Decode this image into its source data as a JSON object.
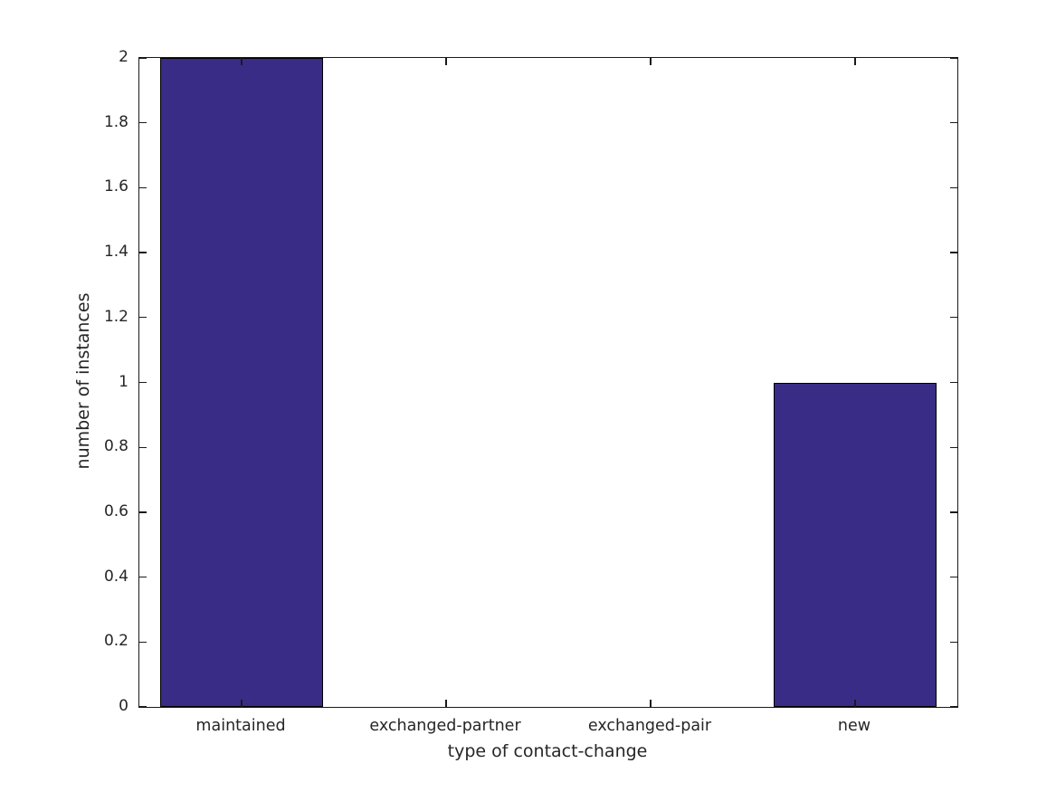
{
  "figure": {
    "background": "#ffffff",
    "text_color": "#262626",
    "axis_color": "#1a1a1a"
  },
  "chart_data": {
    "type": "bar",
    "title": "",
    "categories": [
      "maintained",
      "exchanged-partner",
      "exchanged-pair",
      "new"
    ],
    "values": [
      2,
      0,
      0,
      1
    ],
    "xlabel": "type of contact-change",
    "ylabel": "number of instances",
    "ylim": [
      0,
      2
    ],
    "ytick_labels": [
      "0",
      "0.2",
      "0.4",
      "0.6",
      "0.8",
      "1",
      "1.2",
      "1.4",
      "1.6",
      "1.8",
      "2"
    ],
    "bar_color": "#392c87",
    "bar_edge_color": "#000000",
    "bar_width_fraction": 0.8,
    "grid": false,
    "legend": null,
    "box": true,
    "tick_direction": "in"
  }
}
